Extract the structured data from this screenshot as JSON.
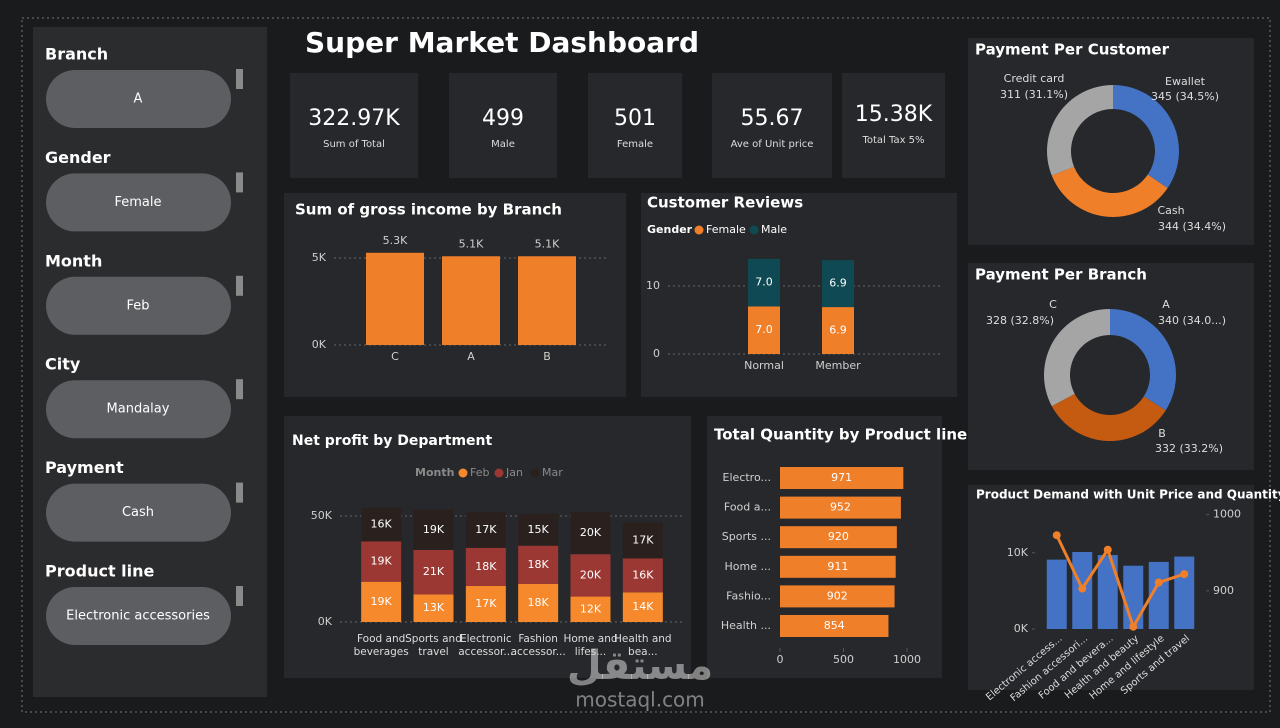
{
  "header": {
    "title": "Super Market Dashboard"
  },
  "sidebar": {
    "slicers": [
      {
        "label": "Branch",
        "value": "A"
      },
      {
        "label": "Gender",
        "value": "Female"
      },
      {
        "label": "Month",
        "value": "Feb"
      },
      {
        "label": "City",
        "value": "Mandalay"
      },
      {
        "label": "Payment",
        "value": "Cash"
      },
      {
        "label": "Product line",
        "value": "Electronic accessories"
      }
    ]
  },
  "kpis": [
    {
      "value": "322.97K",
      "label": "Sum of Total"
    },
    {
      "value": "499",
      "label": "Male"
    },
    {
      "value": "501",
      "label": "Female"
    },
    {
      "value": "55.67",
      "label": "Ave of Unit price"
    },
    {
      "value": "15.38K",
      "label": "Total Tax 5%"
    }
  ],
  "chart_data": [
    {
      "type": "bar",
      "title": "Sum of gross income by Branch",
      "categories": [
        "C",
        "A",
        "B"
      ],
      "values": [
        5300,
        5100,
        5100
      ],
      "value_labels": [
        "5.3K",
        "5.1K",
        "5.1K"
      ],
      "color": "#f07f2a",
      "ylim": [
        0,
        6000
      ],
      "yticks": [
        {
          "value": 0,
          "label": "0K"
        },
        {
          "value": 5000,
          "label": "5K"
        }
      ],
      "grid": true
    },
    {
      "type": "stacked_bar",
      "title": "Customer Reviews",
      "legend_title": "Gender",
      "categories": [
        "Normal",
        "Member"
      ],
      "series": [
        {
          "name": "Female",
          "color": "#f07f2a",
          "values": [
            7.0,
            6.9
          ],
          "value_labels": [
            "7.0",
            "6.9"
          ]
        },
        {
          "name": "Male",
          "color": "#0f4a54",
          "values": [
            7.0,
            6.9
          ],
          "value_labels": [
            "7.0",
            "6.9"
          ]
        }
      ],
      "ylim": [
        0,
        15
      ],
      "yticks": [
        0,
        10
      ],
      "grid": true
    },
    {
      "type": "stacked_bar",
      "title": "Net profit by Department",
      "legend_title": "Month",
      "categories": [
        "Food and beverages",
        "Sports and travel",
        "Electronic accessor...",
        "Fashion accessor...",
        "Home and lifes...",
        "Health and bea..."
      ],
      "series": [
        {
          "name": "Feb",
          "color": "#f5892c",
          "values": [
            19000,
            13000,
            17000,
            18000,
            12000,
            14000
          ],
          "value_labels": [
            "19K",
            "13K",
            "17K",
            "18K",
            "12K",
            "14K"
          ]
        },
        {
          "name": "Jan",
          "color": "#9c3834",
          "values": [
            19000,
            21000,
            18000,
            18000,
            20000,
            16000
          ],
          "value_labels": [
            "19K",
            "21K",
            "18K",
            "18K",
            "20K",
            "16K"
          ]
        },
        {
          "name": "Mar",
          "color": "#2a211f",
          "values": [
            16000,
            19000,
            17000,
            15000,
            20000,
            17000
          ],
          "value_labels": [
            "16K",
            "19K",
            "17K",
            "15K",
            "20K",
            "17K"
          ]
        }
      ],
      "ylim": [
        0,
        55000
      ],
      "yticks": [
        {
          "value": 0,
          "label": "0K"
        },
        {
          "value": 50000,
          "label": "50K"
        }
      ],
      "grid": true
    },
    {
      "type": "hbar",
      "title": "Total Quantity by Product line",
      "categories": [
        "Electro...",
        "Food a...",
        "Sports ...",
        "Home ...",
        "Fashio...",
        "Health ..."
      ],
      "values": [
        971,
        952,
        920,
        911,
        902,
        854
      ],
      "color": "#f07f2a",
      "xlim": [
        0,
        1000
      ],
      "xticks": [
        0,
        500,
        1000
      ]
    },
    {
      "type": "donut",
      "title": "Payment Per Customer",
      "categories": [
        "Ewallet",
        "Cash",
        "Credit card"
      ],
      "values": [
        345,
        344,
        311
      ],
      "value_labels": [
        "345 (34.5%)",
        "344 (34.4%)",
        "311 (31.1%)"
      ],
      "colors": [
        "#4472c4",
        "#f07f2a",
        "#a5a5a5"
      ]
    },
    {
      "type": "donut",
      "title": "Payment Per Branch",
      "categories": [
        "A",
        "B",
        "C"
      ],
      "values": [
        340,
        332,
        328
      ],
      "value_labels": [
        "340 (34.0...)",
        "332 (33.2%)",
        "328 (32.8%)"
      ],
      "colors": [
        "#4472c4",
        "#c55a11",
        "#a5a5a5"
      ]
    },
    {
      "type": "combo",
      "title": "Product Demand with Unit Price and Quantity",
      "categories": [
        "Electronic access...",
        "Fashion accessori...",
        "Food and bevera...",
        "Health and beauty",
        "Home and lifestyle",
        "Sports and travel"
      ],
      "series": [
        {
          "type": "bar",
          "color": "#4472c4",
          "values": [
            9100,
            10100,
            9700,
            8300,
            8800,
            9500
          ]
        },
        {
          "type": "line",
          "color": "#f07f2a",
          "axis": "y2",
          "values": [
            973,
            903,
            954,
            853,
            911,
            922
          ]
        }
      ],
      "ylim": [
        0,
        16000
      ],
      "yticks": [
        {
          "value": 0,
          "label": "0K"
        },
        {
          "value": 10000,
          "label": "10K"
        }
      ],
      "y2lim": [
        850,
        1010
      ],
      "y2ticks": [
        900,
        1000
      ]
    }
  ],
  "watermark": {
    "logo": "مستقل",
    "site": "mostaql.com"
  }
}
